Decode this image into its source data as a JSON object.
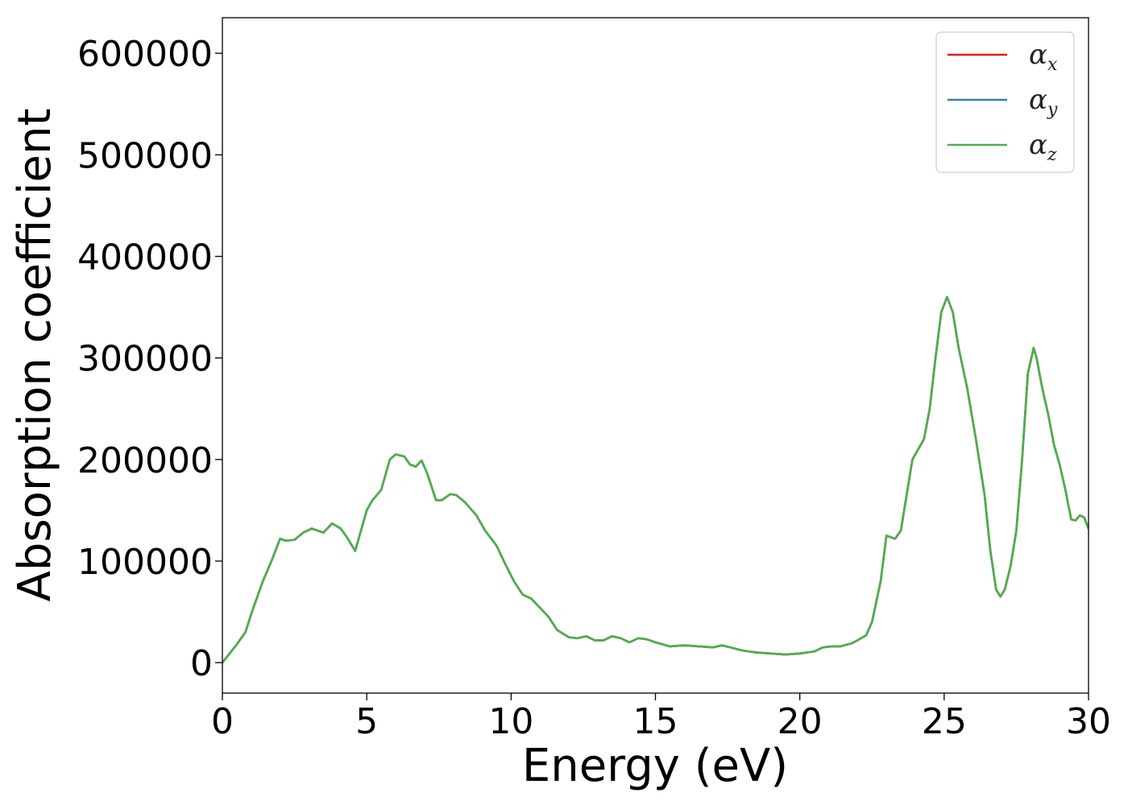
{
  "chart_data": {
    "type": "line",
    "xlabel": "Energy (eV)",
    "ylabel": "Absorption coefficient",
    "xlim": [
      0,
      30
    ],
    "ylim": [
      -30000,
      635000
    ],
    "x_ticks": [
      0,
      5,
      10,
      15,
      20,
      25,
      30
    ],
    "x_tick_labels": [
      "0",
      "5",
      "10",
      "15",
      "20",
      "25",
      "30"
    ],
    "y_ticks": [
      0,
      100000,
      200000,
      300000,
      400000,
      500000,
      600000
    ],
    "y_tick_labels": [
      "0",
      "100000",
      "200000",
      "300000",
      "400000",
      "500000",
      "600000"
    ],
    "grid": false,
    "legend_position": "top-right",
    "x": [
      0,
      0.5,
      0.8,
      1.0,
      1.4,
      1.7,
      2.0,
      2.2,
      2.5,
      2.8,
      3.1,
      3.5,
      3.8,
      4.1,
      4.3,
      4.6,
      4.8,
      5.0,
      5.2,
      5.5,
      5.8,
      6.0,
      6.3,
      6.5,
      6.7,
      6.9,
      7.1,
      7.4,
      7.6,
      7.9,
      8.1,
      8.4,
      8.8,
      9.1,
      9.5,
      9.8,
      10.1,
      10.4,
      10.7,
      11.0,
      11.3,
      11.6,
      12.0,
      12.3,
      12.6,
      12.9,
      13.2,
      13.5,
      13.8,
      14.1,
      14.4,
      14.7,
      15.0,
      15.5,
      16.0,
      16.5,
      17.0,
      17.3,
      17.6,
      18.0,
      18.5,
      19.0,
      19.5,
      20.0,
      20.5,
      20.8,
      21.1,
      21.4,
      21.8,
      22.0,
      22.3,
      22.5,
      22.8,
      23.0,
      23.3,
      23.5,
      23.7,
      23.9,
      24.1,
      24.3,
      24.5,
      24.7,
      24.9,
      25.1,
      25.3,
      25.5,
      25.8,
      26.1,
      26.4,
      26.6,
      26.8,
      26.95,
      27.1,
      27.3,
      27.5,
      27.7,
      27.9,
      28.1,
      28.2,
      28.4,
      28.6,
      28.8,
      29.0,
      29.2,
      29.4,
      29.55,
      29.7,
      29.85,
      30.0
    ],
    "series": [
      {
        "name": "α_x",
        "color": "#e41a1c",
        "values": [
          0,
          18000,
          30000,
          48000,
          80000,
          100000,
          122000,
          120000,
          121000,
          128000,
          132000,
          128000,
          137000,
          132000,
          124000,
          110000,
          130000,
          150000,
          160000,
          170000,
          200000,
          205000,
          203000,
          195000,
          193000,
          199000,
          186000,
          160000,
          160000,
          166000,
          165000,
          158000,
          145000,
          130000,
          115000,
          97000,
          80000,
          67000,
          63000,
          54000,
          45000,
          32000,
          25000,
          24000,
          26000,
          22000,
          22000,
          26000,
          24000,
          20000,
          24000,
          23000,
          20000,
          16000,
          17000,
          16000,
          15000,
          17000,
          15000,
          12000,
          10000,
          9000,
          8000,
          9000,
          11000,
          15000,
          16000,
          16000,
          19000,
          22000,
          27000,
          40000,
          80000,
          125000,
          122000,
          130000,
          165000,
          200000,
          210000,
          220000,
          250000,
          300000,
          345000,
          360000,
          345000,
          310000,
          270000,
          220000,
          165000,
          110000,
          72000,
          65000,
          72000,
          95000,
          130000,
          200000,
          285000,
          310000,
          300000,
          270000,
          245000,
          215000,
          195000,
          170000,
          141000,
          140000,
          145000,
          143000,
          132000
        ]
      },
      {
        "name": "α_y",
        "color": "#377eb8",
        "values": [
          0,
          18000,
          30000,
          48000,
          80000,
          100000,
          122000,
          120000,
          121000,
          128000,
          132000,
          128000,
          137000,
          132000,
          124000,
          110000,
          130000,
          150000,
          160000,
          170000,
          200000,
          205000,
          203000,
          195000,
          193000,
          199000,
          186000,
          160000,
          160000,
          166000,
          165000,
          158000,
          145000,
          130000,
          115000,
          97000,
          80000,
          67000,
          63000,
          54000,
          45000,
          32000,
          25000,
          24000,
          26000,
          22000,
          22000,
          26000,
          24000,
          20000,
          24000,
          23000,
          20000,
          16000,
          17000,
          16000,
          15000,
          17000,
          15000,
          12000,
          10000,
          9000,
          8000,
          9000,
          11000,
          15000,
          16000,
          16000,
          19000,
          22000,
          27000,
          40000,
          80000,
          125000,
          122000,
          130000,
          165000,
          200000,
          210000,
          220000,
          250000,
          300000,
          345000,
          360000,
          345000,
          310000,
          270000,
          220000,
          165000,
          110000,
          72000,
          65000,
          72000,
          95000,
          130000,
          200000,
          285000,
          310000,
          300000,
          270000,
          245000,
          215000,
          195000,
          170000,
          141000,
          140000,
          145000,
          143000,
          132000
        ]
      },
      {
        "name": "α_z",
        "color": "#4daf4a",
        "values": [
          0,
          18000,
          30000,
          48000,
          80000,
          100000,
          122000,
          120000,
          121000,
          128000,
          132000,
          128000,
          137000,
          132000,
          124000,
          110000,
          130000,
          150000,
          160000,
          170000,
          200000,
          205000,
          203000,
          195000,
          193000,
          199000,
          186000,
          160000,
          160000,
          166000,
          165000,
          158000,
          145000,
          130000,
          115000,
          97000,
          80000,
          67000,
          63000,
          54000,
          45000,
          32000,
          25000,
          24000,
          26000,
          22000,
          22000,
          26000,
          24000,
          20000,
          24000,
          23000,
          20000,
          16000,
          17000,
          16000,
          15000,
          17000,
          15000,
          12000,
          10000,
          9000,
          8000,
          9000,
          11000,
          15000,
          16000,
          16000,
          19000,
          22000,
          27000,
          40000,
          80000,
          125000,
          122000,
          130000,
          165000,
          200000,
          210000,
          220000,
          250000,
          300000,
          345000,
          360000,
          345000,
          310000,
          270000,
          220000,
          165000,
          110000,
          72000,
          65000,
          72000,
          95000,
          130000,
          200000,
          285000,
          310000,
          300000,
          270000,
          245000,
          215000,
          195000,
          170000,
          141000,
          140000,
          145000,
          143000,
          132000
        ]
      }
    ],
    "legend": [
      {
        "base": "α",
        "sub": "x"
      },
      {
        "base": "α",
        "sub": "y"
      },
      {
        "base": "α",
        "sub": "z"
      }
    ]
  }
}
